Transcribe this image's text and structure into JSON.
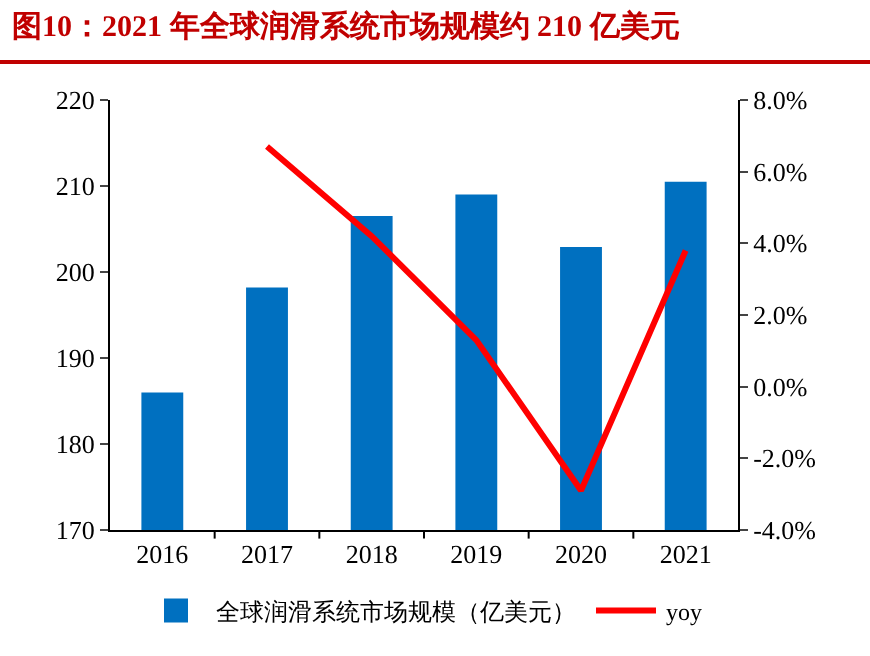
{
  "chart_data": {
    "type": "bar",
    "title": "图10：2021 年全球润滑系统市场规模约 210 亿美元",
    "categories": [
      "2016",
      "2017",
      "2018",
      "2019",
      "2020",
      "2021"
    ],
    "series": [
      {
        "name": "全球润滑系统市场规模（亿美元）",
        "color": "#0070c0",
        "values": [
          186,
          198.2,
          206.5,
          209,
          202.9,
          210.5
        ]
      },
      {
        "name": "yoy",
        "type": "line",
        "axis": "y2",
        "color": "#ff0000",
        "values": [
          null,
          6.7,
          4.2,
          1.3,
          -2.9,
          3.8
        ]
      }
    ],
    "ylim": [
      170,
      220
    ],
    "yticks": [
      170,
      180,
      190,
      200,
      210,
      220
    ],
    "y2lim": [
      -4,
      8
    ],
    "y2ticks": [
      {
        "value": -4,
        "label": "-4.0%"
      },
      {
        "value": -2,
        "label": "-2.0%"
      },
      {
        "value": 0,
        "label": "0.0%"
      },
      {
        "value": 2,
        "label": "2.0%"
      },
      {
        "value": 4,
        "label": "4.0%"
      },
      {
        "value": 6,
        "label": "6.0%"
      },
      {
        "value": 8,
        "label": "8.0%"
      }
    ],
    "grid": false,
    "legend": "bottom",
    "marker": "none",
    "line_style": "solid"
  }
}
